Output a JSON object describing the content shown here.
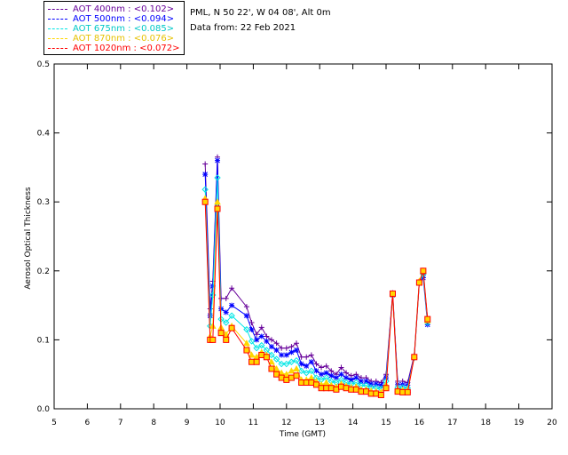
{
  "header": {
    "station": "PML, N 50 22', W 04 08', Alt 0m",
    "data_from": "Data from: 22 Feb 2021"
  },
  "legend": [
    {
      "label": "AOT  400nm : <0.102>",
      "color": "#660099"
    },
    {
      "label": "AOT  500nm : <0.094>",
      "color": "#0000ff"
    },
    {
      "label": "AOT  675nm : <0.085>",
      "color": "#00e5e5"
    },
    {
      "label": "AOT  870nm : <0.076>",
      "color": "#ffd700"
    },
    {
      "label": "AOT 1020nm : <0.072>",
      "color": "#ff0000"
    }
  ],
  "chart_data": {
    "type": "line",
    "xlabel": "Time (GMT)",
    "ylabel": "Aerosol Optical Thickness",
    "xlim": [
      5,
      20
    ],
    "ylim": [
      0,
      0.5
    ],
    "x_ticks": [
      "5",
      "6",
      "7",
      "8",
      "9",
      "10",
      "11",
      "12",
      "13",
      "14",
      "15",
      "16",
      "17",
      "18",
      "19",
      "20"
    ],
    "y_ticks": [
      "0.0",
      "0.1",
      "0.2",
      "0.3",
      "0.4",
      "0.5"
    ],
    "grid": false,
    "legend_position": "top-left",
    "x": [
      9.55,
      9.7,
      9.78,
      9.92,
      10.03,
      10.18,
      10.35,
      10.8,
      10.95,
      11.1,
      11.25,
      11.4,
      11.55,
      11.7,
      11.85,
      12.0,
      12.15,
      12.3,
      12.45,
      12.6,
      12.75,
      12.9,
      13.05,
      13.2,
      13.35,
      13.5,
      13.65,
      13.8,
      13.95,
      14.1,
      14.25,
      14.4,
      14.55,
      14.7,
      14.85,
      15.0,
      15.2,
      15.35,
      15.5,
      15.65,
      15.85,
      16.0,
      16.12,
      16.25
    ],
    "series": [
      {
        "name": "AOT  400nm : <0.102>",
        "color": "#660099",
        "values": [
          0.355,
          0.145,
          0.185,
          0.365,
          0.16,
          0.16,
          0.175,
          0.148,
          0.125,
          0.108,
          0.118,
          0.105,
          0.1,
          0.095,
          0.088,
          0.088,
          0.09,
          0.095,
          0.075,
          0.075,
          0.078,
          0.065,
          0.06,
          0.062,
          0.055,
          0.05,
          0.06,
          0.052,
          0.048,
          0.05,
          0.045,
          0.045,
          0.04,
          0.04,
          0.038,
          0.05,
          0.168,
          0.04,
          0.04,
          0.038,
          0.078,
          0.185,
          0.195,
          0.13
        ]
      },
      {
        "name": "AOT  500nm : <0.094>",
        "color": "#0000ff",
        "values": [
          0.34,
          0.135,
          0.178,
          0.36,
          0.145,
          0.14,
          0.15,
          0.135,
          0.115,
          0.1,
          0.105,
          0.098,
          0.09,
          0.085,
          0.078,
          0.078,
          0.082,
          0.085,
          0.065,
          0.062,
          0.068,
          0.055,
          0.05,
          0.052,
          0.048,
          0.045,
          0.05,
          0.045,
          0.042,
          0.045,
          0.04,
          0.04,
          0.036,
          0.036,
          0.034,
          0.045,
          0.165,
          0.035,
          0.035,
          0.034,
          0.075,
          0.182,
          0.19,
          0.122
        ]
      },
      {
        "name": "AOT  675nm : <0.085>",
        "color": "#00e5e5",
        "values": [
          0.318,
          0.12,
          0.165,
          0.335,
          0.13,
          0.125,
          0.135,
          0.115,
          0.098,
          0.088,
          0.092,
          0.085,
          0.078,
          0.072,
          0.065,
          0.065,
          0.068,
          0.07,
          0.055,
          0.052,
          0.055,
          0.045,
          0.042,
          0.045,
          0.04,
          0.038,
          0.042,
          0.038,
          0.036,
          0.038,
          0.034,
          0.034,
          0.031,
          0.031,
          0.029,
          0.04,
          0.165,
          0.031,
          0.031,
          0.03,
          0.074,
          0.183,
          0.195,
          0.125
        ]
      },
      {
        "name": "AOT  870nm : <0.076>",
        "color": "#ffd700",
        "values": [
          0.305,
          0.105,
          0.12,
          0.3,
          0.118,
          0.108,
          0.12,
          0.095,
          0.078,
          0.075,
          0.082,
          0.078,
          0.068,
          0.058,
          0.052,
          0.05,
          0.055,
          0.058,
          0.042,
          0.042,
          0.045,
          0.04,
          0.035,
          0.038,
          0.034,
          0.032,
          0.036,
          0.033,
          0.031,
          0.032,
          0.028,
          0.028,
          0.026,
          0.025,
          0.024,
          0.035,
          0.166,
          0.028,
          0.027,
          0.027,
          0.076,
          0.185,
          0.2,
          0.128
        ]
      },
      {
        "name": "AOT 1020nm : <0.072>",
        "color": "#ff0000",
        "values": [
          0.3,
          0.1,
          0.1,
          0.29,
          0.11,
          0.1,
          0.117,
          0.085,
          0.068,
          0.068,
          0.078,
          0.075,
          0.058,
          0.05,
          0.045,
          0.042,
          0.045,
          0.048,
          0.038,
          0.038,
          0.038,
          0.035,
          0.03,
          0.03,
          0.03,
          0.028,
          0.032,
          0.03,
          0.028,
          0.028,
          0.025,
          0.025,
          0.022,
          0.022,
          0.02,
          0.03,
          0.167,
          0.025,
          0.024,
          0.024,
          0.075,
          0.183,
          0.2,
          0.13
        ]
      }
    ]
  }
}
